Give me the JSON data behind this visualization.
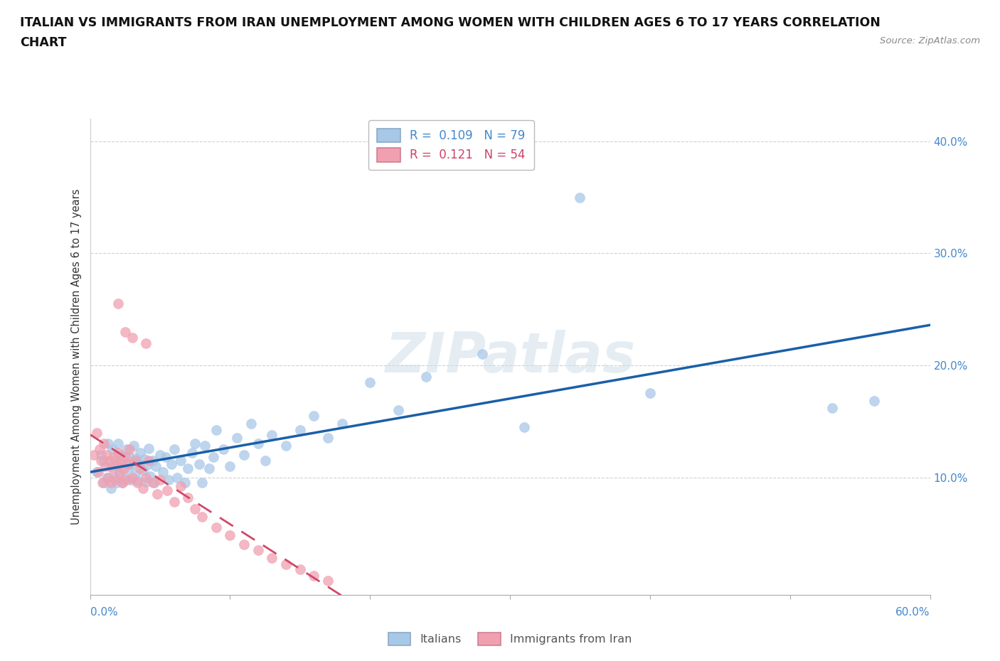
{
  "title_line1": "ITALIAN VS IMMIGRANTS FROM IRAN UNEMPLOYMENT AMONG WOMEN WITH CHILDREN AGES 6 TO 17 YEARS CORRELATION",
  "title_line2": "CHART",
  "source": "Source: ZipAtlas.com",
  "ylabel": "Unemployment Among Women with Children Ages 6 to 17 years",
  "xlim": [
    0.0,
    0.6
  ],
  "ylim": [
    -0.005,
    0.42
  ],
  "watermark": "ZIPatlas",
  "legend_label_italians": "Italians",
  "legend_label_iran": "Immigrants from Iran",
  "color_italians": "#a8c8e8",
  "color_iran": "#f0a0b0",
  "trendline_italians": "#1a5fa8",
  "trendline_iran": "#d04868",
  "title_color": "#111111",
  "ytick_color": "#4488cc",
  "xlabel_color": "#4488cc",
  "italians_x": [
    0.005,
    0.008,
    0.01,
    0.01,
    0.012,
    0.013,
    0.015,
    0.015,
    0.016,
    0.017,
    0.018,
    0.019,
    0.02,
    0.02,
    0.021,
    0.022,
    0.023,
    0.024,
    0.025,
    0.026,
    0.027,
    0.028,
    0.029,
    0.03,
    0.031,
    0.032,
    0.033,
    0.034,
    0.035,
    0.036,
    0.038,
    0.039,
    0.04,
    0.041,
    0.042,
    0.043,
    0.045,
    0.046,
    0.047,
    0.05,
    0.052,
    0.054,
    0.056,
    0.058,
    0.06,
    0.062,
    0.065,
    0.068,
    0.07,
    0.073,
    0.075,
    0.078,
    0.08,
    0.082,
    0.085,
    0.088,
    0.09,
    0.095,
    0.1,
    0.105,
    0.11,
    0.115,
    0.12,
    0.125,
    0.13,
    0.14,
    0.15,
    0.16,
    0.17,
    0.18,
    0.2,
    0.22,
    0.24,
    0.28,
    0.31,
    0.35,
    0.4,
    0.53,
    0.56
  ],
  "italians_y": [
    0.105,
    0.12,
    0.095,
    0.115,
    0.1,
    0.13,
    0.09,
    0.11,
    0.125,
    0.1,
    0.115,
    0.095,
    0.11,
    0.13,
    0.105,
    0.12,
    0.095,
    0.115,
    0.1,
    0.125,
    0.108,
    0.118,
    0.098,
    0.112,
    0.128,
    0.103,
    0.117,
    0.097,
    0.113,
    0.122,
    0.106,
    0.116,
    0.096,
    0.111,
    0.126,
    0.101,
    0.115,
    0.095,
    0.11,
    0.12,
    0.105,
    0.118,
    0.098,
    0.112,
    0.125,
    0.1,
    0.115,
    0.095,
    0.108,
    0.122,
    0.13,
    0.112,
    0.095,
    0.128,
    0.108,
    0.118,
    0.142,
    0.125,
    0.11,
    0.135,
    0.12,
    0.148,
    0.13,
    0.115,
    0.138,
    0.128,
    0.142,
    0.155,
    0.135,
    0.148,
    0.185,
    0.16,
    0.19,
    0.21,
    0.145,
    0.35,
    0.175,
    0.162,
    0.168
  ],
  "iran_x": [
    0.003,
    0.005,
    0.006,
    0.007,
    0.008,
    0.009,
    0.01,
    0.011,
    0.012,
    0.013,
    0.014,
    0.015,
    0.016,
    0.017,
    0.018,
    0.019,
    0.02,
    0.021,
    0.022,
    0.023,
    0.024,
    0.025,
    0.026,
    0.027,
    0.028,
    0.03,
    0.032,
    0.034,
    0.036,
    0.038,
    0.04,
    0.042,
    0.045,
    0.048,
    0.05,
    0.055,
    0.06,
    0.065,
    0.07,
    0.075,
    0.08,
    0.09,
    0.1,
    0.11,
    0.12,
    0.13,
    0.14,
    0.15,
    0.16,
    0.17,
    0.02,
    0.025,
    0.03,
    0.04
  ],
  "iran_y": [
    0.12,
    0.14,
    0.105,
    0.125,
    0.115,
    0.095,
    0.13,
    0.11,
    0.12,
    0.1,
    0.115,
    0.095,
    0.108,
    0.118,
    0.098,
    0.112,
    0.122,
    0.103,
    0.113,
    0.095,
    0.108,
    0.118,
    0.098,
    0.112,
    0.125,
    0.1,
    0.115,
    0.095,
    0.108,
    0.09,
    0.1,
    0.115,
    0.095,
    0.085,
    0.098,
    0.088,
    0.078,
    0.092,
    0.082,
    0.072,
    0.065,
    0.055,
    0.048,
    0.04,
    0.035,
    0.028,
    0.022,
    0.018,
    0.012,
    0.008,
    0.255,
    0.23,
    0.225,
    0.22
  ]
}
